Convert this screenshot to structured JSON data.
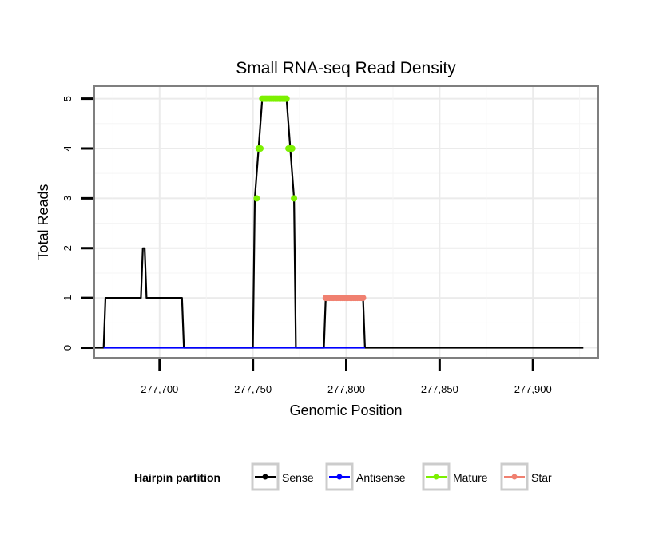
{
  "chart_data": {
    "type": "line",
    "title": "Small RNA-seq Read Density",
    "xlabel": "Genomic Position",
    "ylabel": "Total Reads",
    "xlim": [
      277665,
      277935
    ],
    "ylim": [
      -0.2,
      5.25
    ],
    "xticks": [
      277700,
      277750,
      277800,
      277850,
      277900
    ],
    "xtick_labels": [
      "277,700",
      "277,750",
      "277,800",
      "277,850",
      "277,900"
    ],
    "yticks": [
      0,
      1,
      2,
      3,
      4,
      5
    ],
    "ytick_labels": [
      "0",
      "1",
      "2",
      "3",
      "4",
      "5"
    ],
    "grid": true,
    "legend": {
      "title": "Hairpin partition",
      "position": "bottom",
      "entries": [
        {
          "name": "Sense",
          "color": "#000000"
        },
        {
          "name": "Antisense",
          "color": "#0000ff"
        },
        {
          "name": "Mature",
          "color": "#7cf000"
        },
        {
          "name": "Star",
          "color": "#f08070"
        }
      ]
    },
    "series": [
      {
        "name": "Sense",
        "color": "#000000",
        "x": [
          277665,
          277670,
          277671,
          277690,
          277691,
          277692,
          277693,
          277712,
          277713,
          277750,
          277751,
          277753,
          277755,
          277768,
          277770,
          277772,
          277773,
          277788,
          277789,
          277809,
          277810,
          277927
        ],
        "y": [
          0,
          0,
          1,
          1,
          2,
          2,
          1,
          1,
          0,
          0,
          3,
          4,
          5,
          5,
          4,
          3,
          0,
          0,
          1,
          1,
          0,
          0
        ]
      },
      {
        "name": "Antisense",
        "color": "#0000ff",
        "x": [
          277670,
          277810
        ],
        "y": [
          0,
          0
        ]
      },
      {
        "name": "Mature",
        "color": "#7cf000",
        "points": [
          [
            277752,
            3
          ],
          [
            277753,
            4
          ],
          [
            277754,
            4
          ],
          [
            277755,
            5
          ],
          [
            277756,
            5
          ],
          [
            277757,
            5
          ],
          [
            277758,
            5
          ],
          [
            277759,
            5
          ],
          [
            277760,
            5
          ],
          [
            277761,
            5
          ],
          [
            277762,
            5
          ],
          [
            277763,
            5
          ],
          [
            277764,
            5
          ],
          [
            277765,
            5
          ],
          [
            277766,
            5
          ],
          [
            277767,
            5
          ],
          [
            277768,
            5
          ],
          [
            277769,
            4
          ],
          [
            277770,
            4
          ],
          [
            277771,
            4
          ],
          [
            277772,
            3
          ]
        ]
      },
      {
        "name": "Star",
        "color": "#f08070",
        "points": [
          [
            277789,
            1
          ],
          [
            277790,
            1
          ],
          [
            277791,
            1
          ],
          [
            277792,
            1
          ],
          [
            277793,
            1
          ],
          [
            277794,
            1
          ],
          [
            277795,
            1
          ],
          [
            277796,
            1
          ],
          [
            277797,
            1
          ],
          [
            277798,
            1
          ],
          [
            277799,
            1
          ],
          [
            277800,
            1
          ],
          [
            277801,
            1
          ],
          [
            277802,
            1
          ],
          [
            277803,
            1
          ],
          [
            277804,
            1
          ],
          [
            277805,
            1
          ],
          [
            277806,
            1
          ],
          [
            277807,
            1
          ],
          [
            277808,
            1
          ],
          [
            277809,
            1
          ]
        ]
      }
    ]
  }
}
